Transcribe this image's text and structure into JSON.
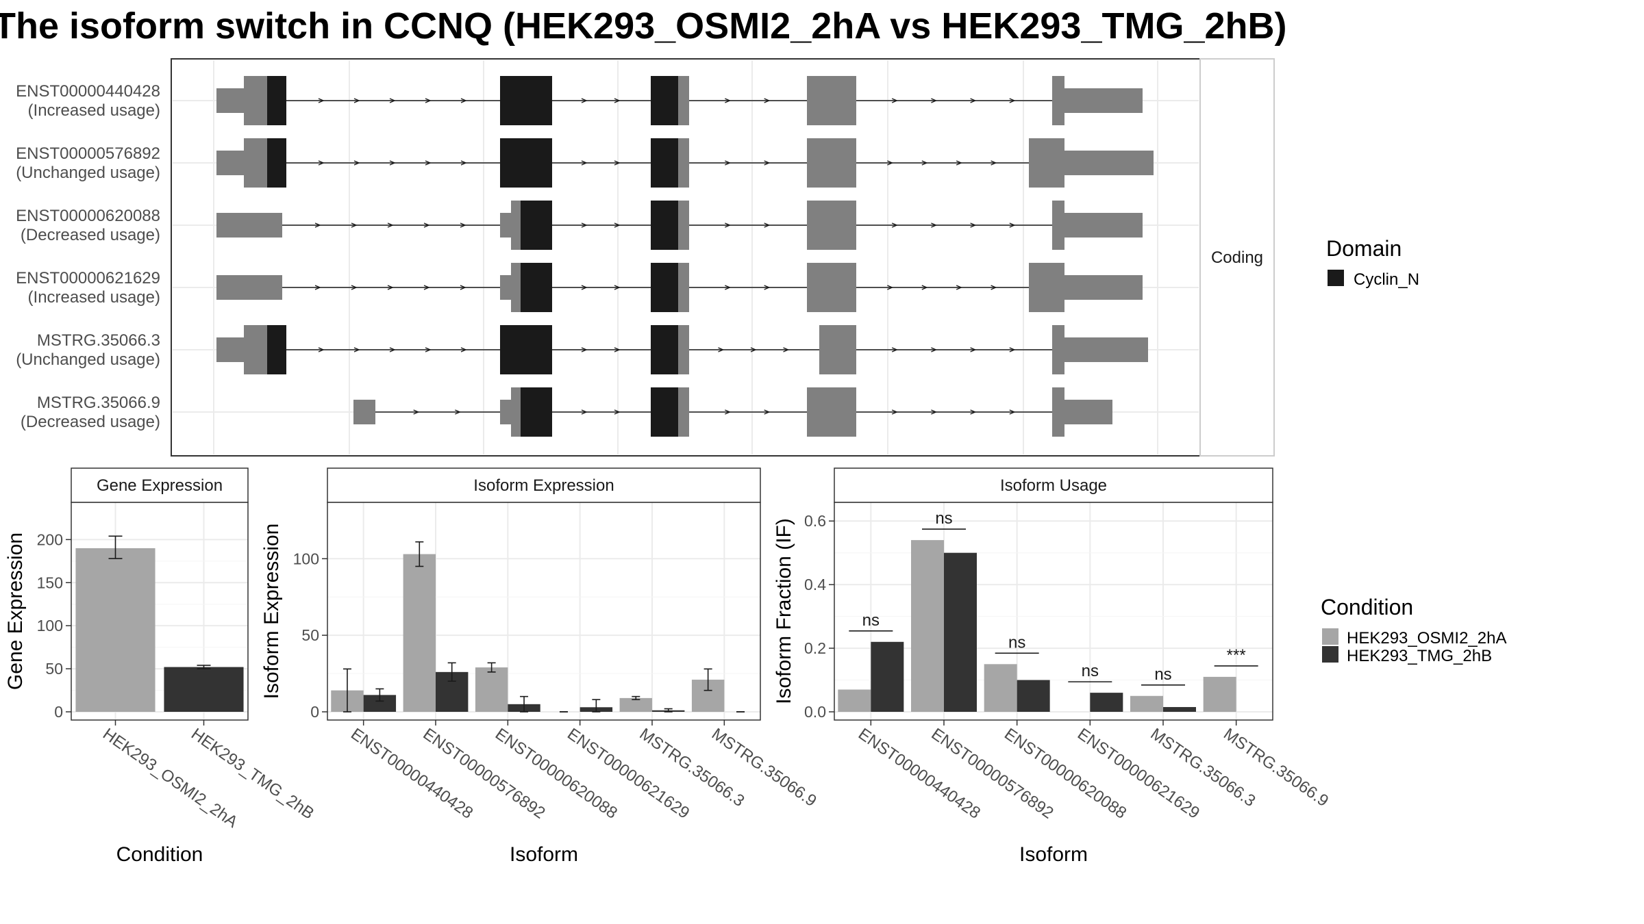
{
  "title": "The isoform switch in CCNQ (HEK293_OSMI2_2hA vs HEK293_TMG_2hB)",
  "colors": {
    "domain": "#1a1a1a",
    "exon": "#808080",
    "cond_a": "#a6a6a6",
    "cond_b": "#333333",
    "grid": "#ebebeb",
    "strip_bg": "#ffffff"
  },
  "structure": {
    "strip_label": "Coding",
    "isoforms": [
      {
        "id": "ENST00000440428",
        "status": "(Increased usage)"
      },
      {
        "id": "ENST00000576892",
        "status": "(Unchanged usage)"
      },
      {
        "id": "ENST00000620088",
        "status": "(Decreased usage)"
      },
      {
        "id": "ENST00000621629",
        "status": "(Increased usage)"
      },
      {
        "id": "MSTRG.35066.3",
        "status": "(Unchanged usage)"
      },
      {
        "id": "MSTRG.35066.9",
        "status": "(Decreased usage)"
      }
    ],
    "legend": {
      "title": "Domain",
      "items": [
        {
          "label": "Cyclin_N",
          "color": "#1a1a1a"
        }
      ]
    }
  },
  "condition_legend": {
    "title": "Condition",
    "items": [
      {
        "label": "HEK293_OSMI2_2hA",
        "color": "#a6a6a6"
      },
      {
        "label": "HEK293_TMG_2hB",
        "color": "#333333"
      }
    ]
  },
  "chart_data": [
    {
      "type": "bar",
      "panel_title": "Gene Expression",
      "xlabel": "Condition",
      "ylabel": "Gene Expression",
      "ylim": [
        0,
        240
      ],
      "yticks": [
        0,
        50,
        100,
        150,
        200
      ],
      "categories": [
        "HEK293_OSMI2_2hA",
        "HEK293_TMG_2hB"
      ],
      "values": [
        190,
        52
      ],
      "errors": [
        [
          178,
          204
        ],
        [
          50,
          54
        ]
      ],
      "colors": [
        "#a6a6a6",
        "#333333"
      ]
    },
    {
      "type": "bar",
      "panel_title": "Isoform Expression",
      "xlabel": "Isoform",
      "ylabel": "Isoform Expression",
      "ylim": [
        0,
        135
      ],
      "yticks": [
        0,
        50,
        100
      ],
      "categories": [
        "ENST00000440428",
        "ENST00000576892",
        "ENST00000620088",
        "ENST00000621629",
        "MSTRG.35066.3",
        "MSTRG.35066.9"
      ],
      "series": [
        {
          "name": "HEK293_OSMI2_2hA",
          "values": [
            14,
            103,
            29,
            0,
            9,
            21
          ],
          "errors": [
            [
              0,
              28
            ],
            [
              95,
              111
            ],
            [
              26,
              32
            ],
            [
              0,
              0
            ],
            [
              8,
              10
            ],
            [
              14,
              28
            ]
          ]
        },
        {
          "name": "HEK293_TMG_2hB",
          "values": [
            11,
            26,
            5,
            3,
            1,
            0
          ],
          "errors": [
            [
              7,
              15
            ],
            [
              20,
              32
            ],
            [
              0,
              10
            ],
            [
              0,
              8
            ],
            [
              0,
              2
            ],
            [
              0,
              0
            ]
          ]
        }
      ]
    },
    {
      "type": "bar",
      "panel_title": "Isoform Usage",
      "xlabel": "Isoform",
      "ylabel": "Isoform Fraction (IF)",
      "ylim": [
        0,
        0.65
      ],
      "yticks": [
        0.0,
        0.2,
        0.4,
        0.6
      ],
      "categories": [
        "ENST00000440428",
        "ENST00000576892",
        "ENST00000620088",
        "ENST00000621629",
        "MSTRG.35066.3",
        "MSTRG.35066.9"
      ],
      "series": [
        {
          "name": "HEK293_OSMI2_2hA",
          "values": [
            0.07,
            0.54,
            0.15,
            0.0,
            0.05,
            0.11
          ]
        },
        {
          "name": "HEK293_TMG_2hB",
          "values": [
            0.22,
            0.5,
            0.1,
            0.06,
            0.015,
            0.0
          ]
        }
      ],
      "annotations": [
        "ns",
        "ns",
        "ns",
        "ns",
        "ns",
        "***"
      ]
    }
  ]
}
